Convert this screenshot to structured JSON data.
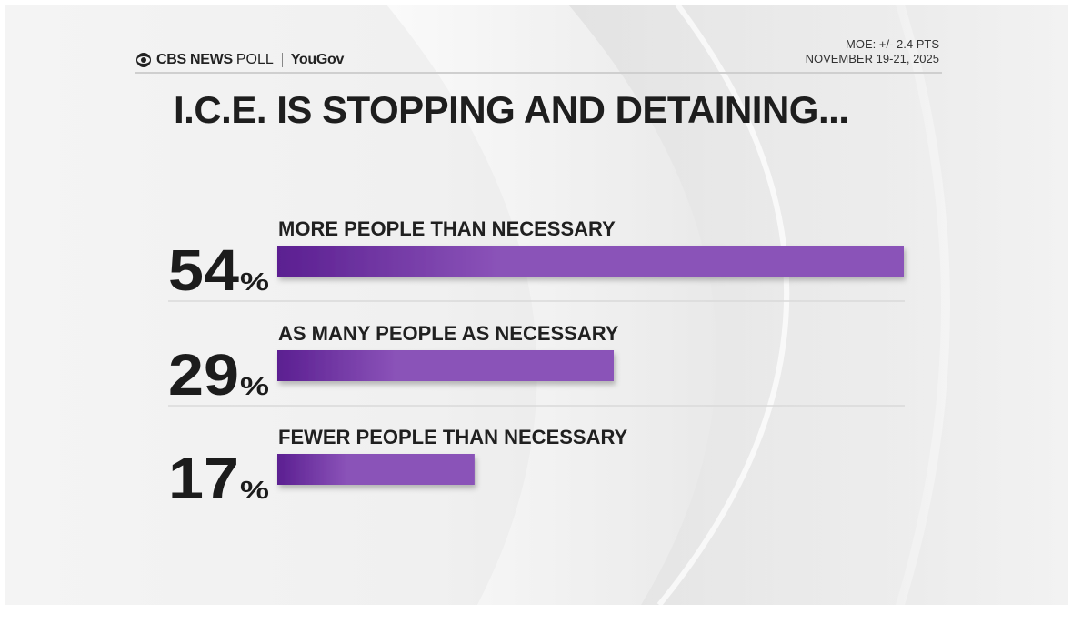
{
  "header": {
    "brand": "CBS NEWS",
    "brand_suffix": "POLL",
    "partner": "YouGov",
    "moe": "MOE: +/- 2.4 PTS",
    "date": "NOVEMBER 19-21, 2025"
  },
  "colors": {
    "bar_start": "#5b1f91",
    "bar_end": "#8a52b8",
    "text": "#1c1c1c"
  },
  "chart_data": {
    "type": "bar",
    "title": "I.C.E. IS STOPPING AND DETAINING...",
    "orientation": "horizontal",
    "categories": [
      "MORE PEOPLE THAN NECESSARY",
      "AS MANY PEOPLE AS NECESSARY",
      "FEWER PEOPLE THAN NECESSARY"
    ],
    "values": [
      54,
      29,
      17
    ],
    "value_suffix": "%",
    "xlim": [
      0,
      54
    ],
    "xlabel": "",
    "ylabel": "",
    "grid": false,
    "legend": "none"
  }
}
